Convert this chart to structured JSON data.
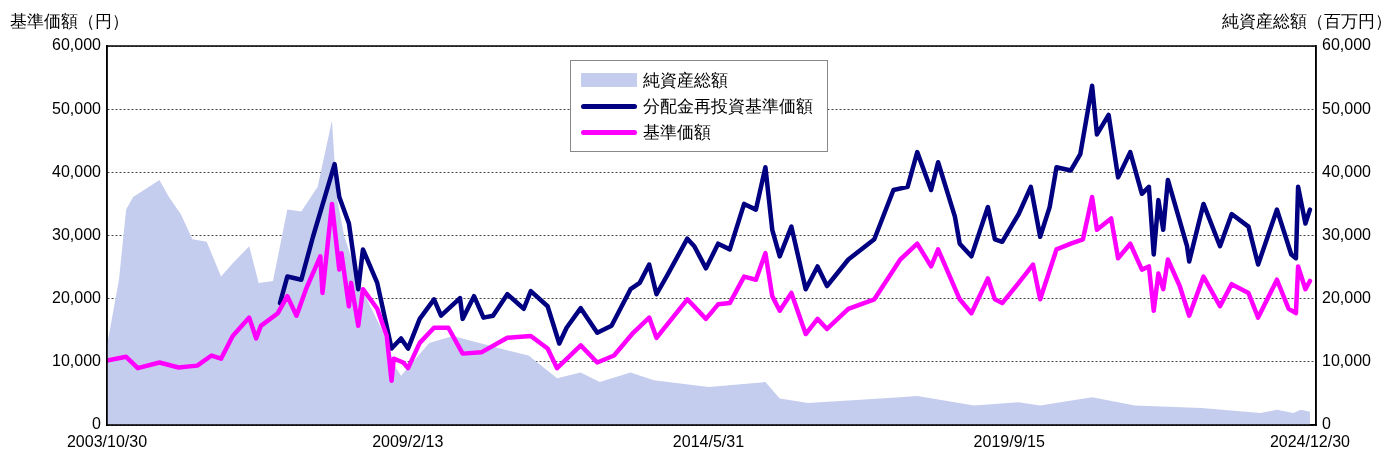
{
  "chart_data": {
    "type": "line",
    "ylabel": "基準価額（円）",
    "y2label": "純資産総額（百万円）",
    "xlim": [
      "2003-10-30",
      "2025-02-07"
    ],
    "xticks": [
      {
        "value": "2003-10-30",
        "label": "2003/10/30"
      },
      {
        "value": "2009-02-13",
        "label": "2009/2/13"
      },
      {
        "value": "2014-05-31",
        "label": "2014/5/31"
      },
      {
        "value": "2019-09-15",
        "label": "2019/9/15"
      },
      {
        "value": "2024-12-30",
        "label": "2024/12/30"
      }
    ],
    "ylim": [
      0,
      60000
    ],
    "yticks": [
      0,
      {
        "value": 10000,
        "label": "10,000"
      },
      {
        "value": 20000,
        "label": "20,000"
      },
      {
        "value": 30000,
        "label": "30,000"
      },
      {
        "value": 40000,
        "label": "40,000"
      },
      {
        "value": 50000,
        "label": "50,000"
      },
      {
        "value": 60000,
        "label": "60,000"
      }
    ],
    "y2lim": [
      0,
      60000
    ],
    "y2ticks": [
      0,
      {
        "value": 10000,
        "label": "10,000"
      },
      {
        "value": 20000,
        "label": "20,000"
      },
      {
        "value": 30000,
        "label": "30,000"
      },
      {
        "value": 40000,
        "label": "40,000"
      },
      {
        "value": 50000,
        "label": "50,000"
      },
      {
        "value": 60000,
        "label": "60,000"
      }
    ],
    "grid": "y",
    "legend": "top",
    "line_style": "solid",
    "marker": "none",
    "series": [
      {
        "name": "純資産総額",
        "type": "area",
        "axis": "y2",
        "color": "#c5cdee",
        "x": [
          "2003-10-30",
          "2004-01-15",
          "2004-03-01",
          "2004-04-15",
          "2004-10-01",
          "2004-12-01",
          "2005-02-15",
          "2005-05-01",
          "2005-08-01",
          "2005-11-01",
          "2006-01-15",
          "2006-05-01",
          "2006-07-01",
          "2006-10-01",
          "2007-01-01",
          "2007-04-01",
          "2007-07-15",
          "2007-10-15",
          "2007-11-15",
          "2008-01-01",
          "2008-04-15",
          "2008-09-01",
          "2008-12-01",
          "2009-01-01",
          "2009-07-01",
          "2009-12-01",
          "2010-10-01",
          "2011-04-01",
          "2011-10-01",
          "2012-03-01",
          "2012-07-01",
          "2013-01-15",
          "2013-06-15",
          "2014-06-01",
          "2015-06-01",
          "2015-09-01",
          "2016-03-01",
          "2017-10-15",
          "2018-02-01",
          "2019-02-01",
          "2019-11-15",
          "2020-04-01",
          "2021-03-01",
          "2021-12-01",
          "2023-02-01",
          "2024-02-15",
          "2024-06-01",
          "2024-09-15",
          "2024-11-01",
          "2024-12-30"
        ],
        "values": [
          12600,
          23000,
          34100,
          36100,
          38800,
          36100,
          33400,
          29400,
          29000,
          23500,
          25600,
          28300,
          22500,
          22800,
          34100,
          33800,
          37700,
          48200,
          36100,
          30000,
          22000,
          15000,
          9000,
          7800,
          13000,
          14100,
          12100,
          11000,
          7400,
          8300,
          6800,
          8300,
          7100,
          6000,
          6800,
          4200,
          3500,
          4400,
          4600,
          3100,
          3600,
          3100,
          4400,
          3100,
          2700,
          1900,
          2400,
          1900,
          2400,
          2100
        ]
      },
      {
        "name": "分配金再投資基準価額",
        "type": "line",
        "color": "#000080",
        "x": [
          "2006-11-15",
          "2007-01-01",
          "2007-04-01",
          "2007-06-15",
          "2007-11-01",
          "2007-12-01",
          "2008-02-01",
          "2008-04-01",
          "2008-05-01",
          "2008-08-01",
          "2008-11-01",
          "2009-01-01",
          "2009-02-15",
          "2009-05-01",
          "2009-08-01",
          "2009-09-15",
          "2010-01-15",
          "2010-02-01",
          "2010-04-15",
          "2010-06-15",
          "2010-08-15",
          "2010-11-15",
          "2011-03-01",
          "2011-04-15",
          "2011-08-01",
          "2011-10-15",
          "2011-12-01",
          "2012-03-01",
          "2012-06-15",
          "2012-09-15",
          "2013-01-15",
          "2013-03-15",
          "2013-05-15",
          "2013-07-01",
          "2013-09-15",
          "2014-01-15",
          "2014-03-01",
          "2014-05-15",
          "2014-08-01",
          "2014-10-15",
          "2015-01-15",
          "2015-04-01",
          "2015-06-01",
          "2015-07-15",
          "2015-09-01",
          "2015-11-15",
          "2016-02-15",
          "2016-05-01",
          "2016-07-01",
          "2016-11-15",
          "2017-05-01",
          "2017-09-01",
          "2017-12-01",
          "2018-02-01",
          "2018-05-01",
          "2018-06-15",
          "2018-10-01",
          "2018-11-01",
          "2019-01-15",
          "2019-05-01",
          "2019-06-15",
          "2019-08-01",
          "2019-11-15",
          "2020-02-01",
          "2020-04-01",
          "2020-06-01",
          "2020-07-15",
          "2020-10-15",
          "2020-12-15",
          "2021-03-01",
          "2021-04-01",
          "2021-06-15",
          "2021-08-15",
          "2021-11-01",
          "2022-01-15",
          "2022-03-01",
          "2022-04-01",
          "2022-05-01",
          "2022-06-01",
          "2022-07-01",
          "2022-11-01",
          "2022-11-15",
          "2023-02-15",
          "2023-06-01",
          "2023-08-15",
          "2023-12-01",
          "2024-02-01",
          "2024-06-01",
          "2024-09-01",
          "2024-10-01",
          "2024-10-15",
          "2024-12-01",
          "2024-12-30"
        ],
        "values": [
          19300,
          23500,
          23000,
          29800,
          41300,
          36100,
          31900,
          21500,
          27800,
          22500,
          12100,
          13700,
          12100,
          16800,
          19900,
          17300,
          20100,
          16800,
          20400,
          17000,
          17300,
          20700,
          18400,
          21200,
          18800,
          12900,
          15400,
          18500,
          14600,
          15700,
          21500,
          22500,
          25400,
          20700,
          24000,
          29500,
          28300,
          24800,
          28700,
          27800,
          35000,
          34100,
          40800,
          30900,
          26700,
          31400,
          21500,
          25100,
          22000,
          26200,
          29400,
          37200,
          37700,
          43200,
          37200,
          41600,
          33000,
          28700,
          26700,
          34500,
          29400,
          29000,
          33400,
          37700,
          29800,
          34500,
          40800,
          40300,
          42900,
          53700,
          46000,
          49100,
          39200,
          43200,
          36600,
          37700,
          27000,
          35600,
          30900,
          38800,
          28300,
          25900,
          35000,
          28300,
          33400,
          31400,
          25400,
          34100,
          27000,
          26400,
          37700,
          31900,
          34100
        ]
      },
      {
        "name": "基準価額",
        "type": "line",
        "color": "#ff00ff",
        "x": [
          "2003-10-30",
          "2004-03-01",
          "2004-05-15",
          "2004-10-01",
          "2005-02-01",
          "2005-06-01",
          "2005-09-01",
          "2005-11-01",
          "2006-01-15",
          "2006-05-01",
          "2006-06-15",
          "2006-07-15",
          "2006-11-01",
          "2007-01-01",
          "2007-03-01",
          "2007-05-01",
          "2007-08-01",
          "2007-08-15",
          "2007-10-15",
          "2007-12-01",
          "2007-12-15",
          "2008-02-01",
          "2008-02-15",
          "2008-04-01",
          "2008-05-01",
          "2008-08-01",
          "2008-10-01",
          "2008-11-01",
          "2008-11-15",
          "2009-01-15",
          "2009-02-15",
          "2009-05-01",
          "2009-08-01",
          "2009-11-01",
          "2010-02-01",
          "2010-06-01",
          "2010-11-15",
          "2011-04-15",
          "2011-08-01",
          "2011-10-01",
          "2012-03-01",
          "2012-06-15",
          "2012-10-01",
          "2013-02-01",
          "2013-05-15",
          "2013-07-01",
          "2014-01-15",
          "2014-05-15",
          "2014-08-01",
          "2014-10-15",
          "2015-01-15",
          "2015-04-01",
          "2015-06-01",
          "2015-07-15",
          "2015-09-01",
          "2015-11-15",
          "2016-02-15",
          "2016-05-01",
          "2016-07-01",
          "2016-11-15",
          "2017-05-01",
          "2017-10-15",
          "2018-02-01",
          "2018-05-01",
          "2018-06-15",
          "2018-11-01",
          "2019-01-15",
          "2019-05-01",
          "2019-06-15",
          "2019-08-01",
          "2019-11-15",
          "2020-02-15",
          "2020-04-01",
          "2020-07-15",
          "2020-10-15",
          "2021-01-01",
          "2021-03-01",
          "2021-04-01",
          "2021-07-01",
          "2021-08-15",
          "2021-11-01",
          "2022-01-15",
          "2022-03-01",
          "2022-04-01",
          "2022-05-01",
          "2022-06-01",
          "2022-07-01",
          "2022-09-15",
          "2022-11-15",
          "2023-02-15",
          "2023-06-01",
          "2023-08-15",
          "2023-12-01",
          "2024-02-01",
          "2024-06-01",
          "2024-08-15",
          "2024-10-01",
          "2024-10-15",
          "2024-12-01",
          "2024-12-30"
        ],
        "values": [
          10200,
          10800,
          9000,
          9900,
          9100,
          9400,
          11000,
          10500,
          14100,
          17000,
          13700,
          15700,
          17700,
          20400,
          17300,
          21500,
          26700,
          20900,
          35000,
          24600,
          27200,
          18800,
          22500,
          15700,
          21500,
          18400,
          14100,
          7000,
          10500,
          9900,
          9000,
          13000,
          15400,
          15400,
          11300,
          11500,
          13800,
          14100,
          12100,
          9000,
          12600,
          9900,
          11000,
          14600,
          17000,
          13800,
          19900,
          16800,
          19100,
          19300,
          23500,
          23000,
          27200,
          20400,
          18100,
          20900,
          14400,
          16800,
          15200,
          18400,
          19900,
          26200,
          28700,
          25100,
          27800,
          19900,
          17700,
          23200,
          19900,
          19300,
          22500,
          25400,
          19900,
          27800,
          28700,
          29400,
          36100,
          30900,
          32700,
          26400,
          28700,
          24600,
          25100,
          18100,
          24000,
          21500,
          26200,
          22000,
          17300,
          23500,
          18800,
          22300,
          20900,
          17000,
          23000,
          18400,
          17700,
          25100,
          21500,
          22800
        ]
      }
    ]
  }
}
